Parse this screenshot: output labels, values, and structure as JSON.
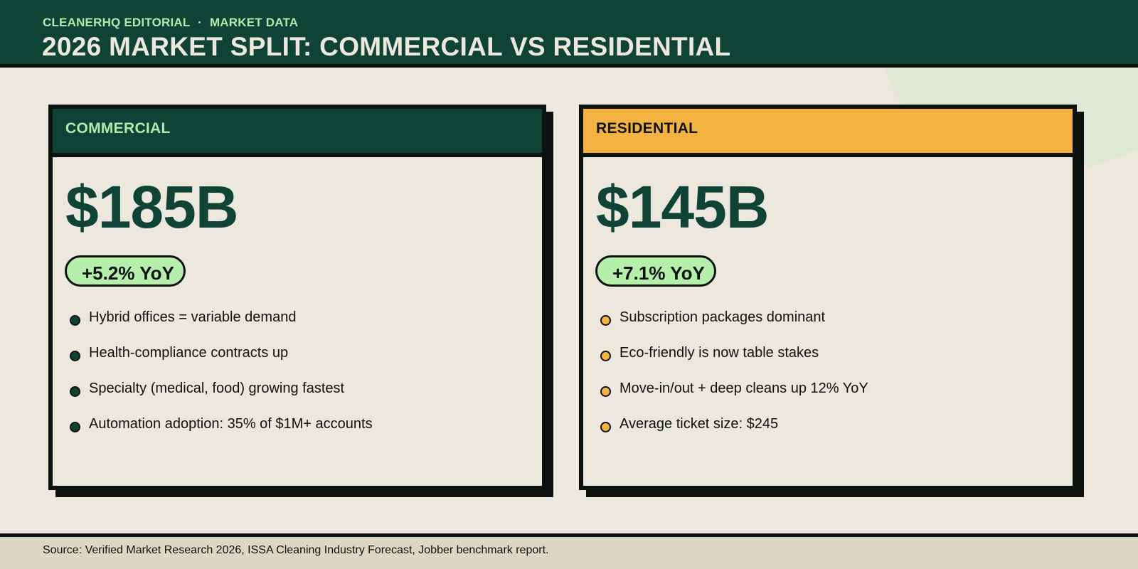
{
  "header": {
    "eyebrow_brand": "CLEANERHQ EDITORIAL",
    "eyebrow_separator": "·",
    "eyebrow_section": "MARKET DATA",
    "title": "2026 MARKET SPLIT: COMMERCIAL VS RESIDENTIAL"
  },
  "cards": [
    {
      "label": "COMMERCIAL",
      "value": "$185B",
      "growth": "+5.2% YoY",
      "bullets": [
        "Hybrid offices = variable demand",
        "Health-compliance contracts up",
        "Specialty (medical, food) growing fastest",
        "Automation adoption: 35% of $1M+ accounts"
      ]
    },
    {
      "label": "RESIDENTIAL",
      "value": "$145B",
      "growth": "+7.1% YoY",
      "bullets": [
        "Subscription packages dominant",
        "Eco-friendly is now table stakes",
        "Move-in/out + deep cleans up 12% YoY",
        "Average ticket size: $245"
      ]
    }
  ],
  "footer": {
    "source": "Source: Verified Market Research 2026, ISSA Cleaning Industry Forecast, Jobber benchmark report."
  },
  "colors": {
    "primary_green": "#0f4336",
    "accent_mint": "#b6e8ad",
    "accent_orange": "#f4b242",
    "background": "#ece8de",
    "ink": "#0c120e"
  }
}
